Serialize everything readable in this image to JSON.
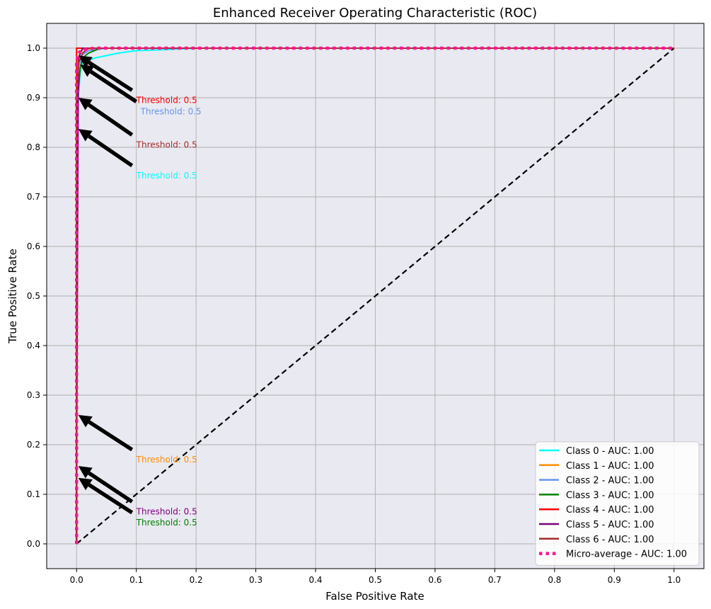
{
  "chart_data": {
    "type": "line",
    "title": "Enhanced Receiver Operating Characteristic (ROC)",
    "xlabel": "False Positive Rate",
    "ylabel": "True Positive Rate",
    "xlim": [
      -0.05,
      1.05
    ],
    "ylim": [
      -0.05,
      1.05
    ],
    "xticks": [
      0.0,
      0.1,
      0.2,
      0.3,
      0.4,
      0.5,
      0.6,
      0.7,
      0.8,
      0.9,
      1.0
    ],
    "yticks": [
      0.0,
      0.1,
      0.2,
      0.3,
      0.4,
      0.5,
      0.6,
      0.7,
      0.8,
      0.9,
      1.0
    ],
    "xtick_labels": [
      "0.0",
      "0.1",
      "0.2",
      "0.3",
      "0.4",
      "0.5",
      "0.6",
      "0.7",
      "0.8",
      "0.9",
      "1.0"
    ],
    "ytick_labels": [
      "0.0",
      "0.1",
      "0.2",
      "0.3",
      "0.4",
      "0.5",
      "0.6",
      "0.7",
      "0.8",
      "0.9",
      "1.0"
    ],
    "grid": true,
    "legend_position": "lower-right",
    "background_color": "#e9e9f1",
    "series": [
      {
        "name": "Class 0 - AUC: 1.00",
        "color": "#00ffff",
        "style": "solid",
        "x": [
          0,
          0,
          0.003,
          0.006,
          0.01,
          0.02,
          0.03,
          0.05,
          0.07,
          0.1,
          0.15,
          0.2,
          0.5,
          1.0
        ],
        "y": [
          0,
          0.83,
          0.9,
          0.95,
          0.97,
          0.975,
          0.98,
          0.985,
          0.99,
          0.995,
          0.997,
          1.0,
          1.0,
          1.0
        ]
      },
      {
        "name": "Class 1 - AUC: 1.00",
        "color": "#ff8c00",
        "style": "solid",
        "x": [
          0,
          0,
          0.002,
          0.005,
          0.01,
          0.03,
          1.0
        ],
        "y": [
          0,
          0.26,
          0.95,
          0.99,
          0.997,
          1.0,
          1.0
        ]
      },
      {
        "name": "Class 2 - AUC: 1.00",
        "color": "#6495ed",
        "style": "solid",
        "x": [
          0,
          0,
          0.003,
          0.008,
          0.02,
          0.05,
          1.0
        ],
        "y": [
          0,
          0.9,
          0.96,
          0.985,
          0.995,
          1.0,
          1.0
        ]
      },
      {
        "name": "Class 3 - AUC: 1.00",
        "color": "#008000",
        "style": "solid",
        "x": [
          0,
          0,
          0.002,
          0.006,
          0.01,
          0.02,
          0.04,
          1.0
        ],
        "y": [
          0,
          0.13,
          0.9,
          0.96,
          0.98,
          0.99,
          1.0,
          1.0
        ]
      },
      {
        "name": "Class 4 - AUC: 1.00",
        "color": "#ff0000",
        "style": "solid",
        "x": [
          0,
          0,
          0.02,
          1.0
        ],
        "y": [
          0,
          1.0,
          1.0,
          1.0
        ]
      },
      {
        "name": "Class 5 - AUC: 1.00",
        "color": "#800080",
        "style": "solid",
        "x": [
          0,
          0,
          0.003,
          0.01,
          1.0
        ],
        "y": [
          0,
          0.15,
          0.98,
          1.0,
          1.0
        ]
      },
      {
        "name": "Class 6 - AUC: 1.00",
        "color": "#a52a2a",
        "style": "solid",
        "x": [
          0,
          0,
          0.003,
          0.01,
          0.02,
          1.0
        ],
        "y": [
          0,
          0.89,
          0.97,
          0.99,
          1.0,
          1.0
        ]
      },
      {
        "name": "Micro-average - AUC: 1.00",
        "color": "#ff1493",
        "style": "dotted",
        "x": [
          0,
          0,
          0.003,
          0.01,
          0.03,
          1.0
        ],
        "y": [
          0,
          0.97,
          0.99,
          0.997,
          1.0,
          1.0
        ]
      }
    ],
    "chance_line": {
      "x": [
        0,
        1
      ],
      "y": [
        0,
        1
      ],
      "color": "#000000",
      "style": "dashed"
    },
    "annotations": [
      {
        "text": "Threshold: 0.5",
        "color": "#ff0000",
        "text_x": 0.1,
        "text_y": 0.895,
        "point_x": 0.003,
        "point_y": 0.985
      },
      {
        "text": "Threshold: 0.5",
        "color": "#6495ed",
        "text_x": 0.107,
        "text_y": 0.872,
        "point_x": 0.006,
        "point_y": 0.967
      },
      {
        "text": "Threshold: 0.5",
        "color": "#a52a2a",
        "text_x": 0.1,
        "text_y": 0.805,
        "point_x": 0.003,
        "point_y": 0.9
      },
      {
        "text": "Threshold: 0.5",
        "color": "#00ffff",
        "text_x": 0.1,
        "text_y": 0.743,
        "point_x": 0.003,
        "point_y": 0.837
      },
      {
        "text": "Threshold: 0.5",
        "color": "#ff8c00",
        "text_x": 0.1,
        "text_y": 0.17,
        "point_x": 0.003,
        "point_y": 0.26
      },
      {
        "text": "Threshold: 0.5",
        "color": "#800080",
        "text_x": 0.1,
        "text_y": 0.065,
        "point_x": 0.003,
        "point_y": 0.157
      },
      {
        "text": "Threshold: 0.5",
        "color": "#008000",
        "text_x": 0.1,
        "text_y": 0.043,
        "point_x": 0.003,
        "point_y": 0.133
      }
    ]
  }
}
